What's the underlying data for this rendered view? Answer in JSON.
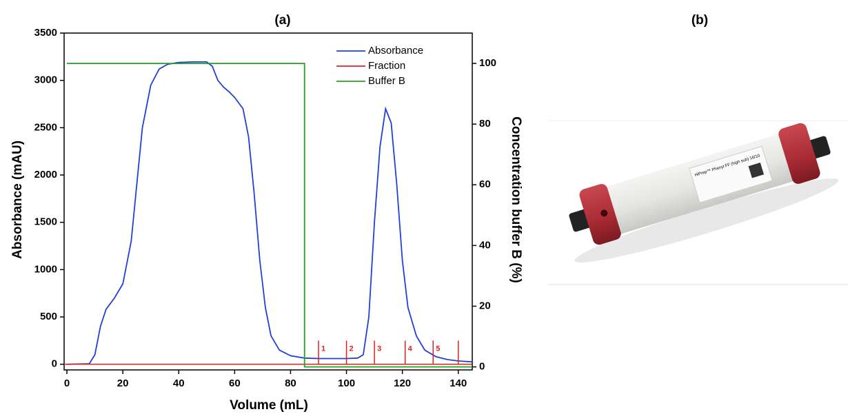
{
  "chart_data": {
    "type": "line",
    "title": "(a)",
    "x_label": "Volume (mL)",
    "y_label": "Absorbance  (mAU)",
    "y2_label": "Concentration buffer B (%)",
    "xlim": [
      -1,
      145
    ],
    "xticks": [
      0,
      20,
      40,
      60,
      80,
      100,
      120,
      140
    ],
    "ylim": [
      -60,
      3500
    ],
    "yticks": [
      0,
      500,
      1000,
      1500,
      2000,
      2500,
      3000,
      3500
    ],
    "y2lim": [
      -1,
      110
    ],
    "y2ticks": [
      0,
      20,
      40,
      60,
      80,
      100
    ],
    "legend": "upper right",
    "series": [
      {
        "name": "Absorbance",
        "color": "#1f3fd8",
        "x": [
          0,
          8,
          10,
          12,
          14,
          17,
          20,
          23,
          25,
          27,
          30,
          33,
          36,
          40,
          45,
          50,
          52,
          54,
          56,
          58,
          60,
          63,
          65,
          67,
          69,
          71,
          73,
          76,
          80,
          85,
          90,
          100,
          104,
          106,
          108,
          110,
          112,
          114,
          116,
          118,
          120,
          122,
          125,
          128,
          132,
          136,
          140,
          145
        ],
        "values": [
          0,
          5,
          100,
          400,
          580,
          700,
          850,
          1300,
          1900,
          2500,
          2950,
          3120,
          3170,
          3190,
          3195,
          3195,
          3150,
          3000,
          2930,
          2880,
          2820,
          2700,
          2400,
          1800,
          1100,
          600,
          300,
          150,
          90,
          65,
          60,
          60,
          65,
          100,
          500,
          1500,
          2300,
          2700,
          2550,
          1900,
          1100,
          600,
          300,
          150,
          80,
          50,
          35,
          25
        ]
      },
      {
        "name": "Fraction",
        "color": "#e02020",
        "x": [
          90,
          100,
          110,
          121,
          131,
          140
        ],
        "values": [
          250,
          250,
          250,
          250,
          250,
          250
        ],
        "labels": [
          "1",
          "2",
          "3",
          "4",
          "5",
          null
        ]
      },
      {
        "name": "Buffer B",
        "color": "#22a022",
        "axis": "y2",
        "x": [
          0,
          85,
          85,
          145
        ],
        "values": [
          100,
          100,
          0,
          0
        ]
      }
    ]
  },
  "panel_b": {
    "title": "(b)",
    "column_label": "HiPrep™ Phenyl FF (high sub) 16/10"
  }
}
